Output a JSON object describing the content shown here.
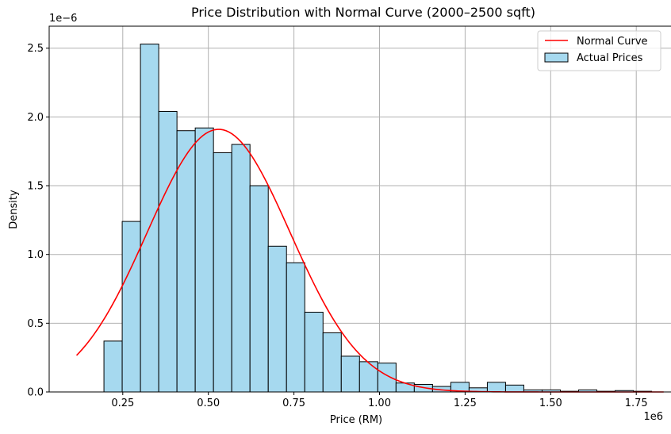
{
  "chart_data": {
    "type": "bar",
    "title": "Price Distribution with Normal Curve (2000–2500 sqft)",
    "xlabel": "Price (RM)",
    "ylabel": "Density",
    "x_offset_label": "1e6",
    "y_offset_label": "1e−6",
    "xlim": [
      0.035,
      1.87
    ],
    "ylim": [
      0,
      2.66
    ],
    "x_ticks": [
      0.25,
      0.5,
      0.75,
      1.0,
      1.25,
      1.5,
      1.75
    ],
    "x_tick_labels": [
      "0.25",
      "0.50",
      "0.75",
      "1.00",
      "1.25",
      "1.50",
      "1.75"
    ],
    "y_ticks": [
      0,
      0.5,
      1.0,
      1.5,
      2.0,
      2.5
    ],
    "y_tick_labels": [
      "0.0",
      "0.5",
      "1.0",
      "1.5",
      "2.0",
      "2.5"
    ],
    "grid": true,
    "legend_position": "top-right",
    "histogram": {
      "name": "Actual Prices",
      "color": "#a6d9ef",
      "edge_color": "#000000",
      "bin_start": 0.195,
      "bin_width": 0.05333,
      "values": [
        0.37,
        1.24,
        2.53,
        2.04,
        1.9,
        1.92,
        1.74,
        1.8,
        1.5,
        1.06,
        0.94,
        0.58,
        0.43,
        0.26,
        0.22,
        0.21,
        0.065,
        0.055,
        0.04,
        0.07,
        0.03,
        0.07,
        0.05,
        0.015,
        0.015,
        0.005,
        0.015,
        0.005,
        0.01,
        0.005
      ]
    },
    "normal_curve": {
      "name": "Normal Curve",
      "color": "#ff0000",
      "mean": 0.53,
      "std": 0.209,
      "x_range": [
        0.115,
        1.83
      ]
    }
  }
}
